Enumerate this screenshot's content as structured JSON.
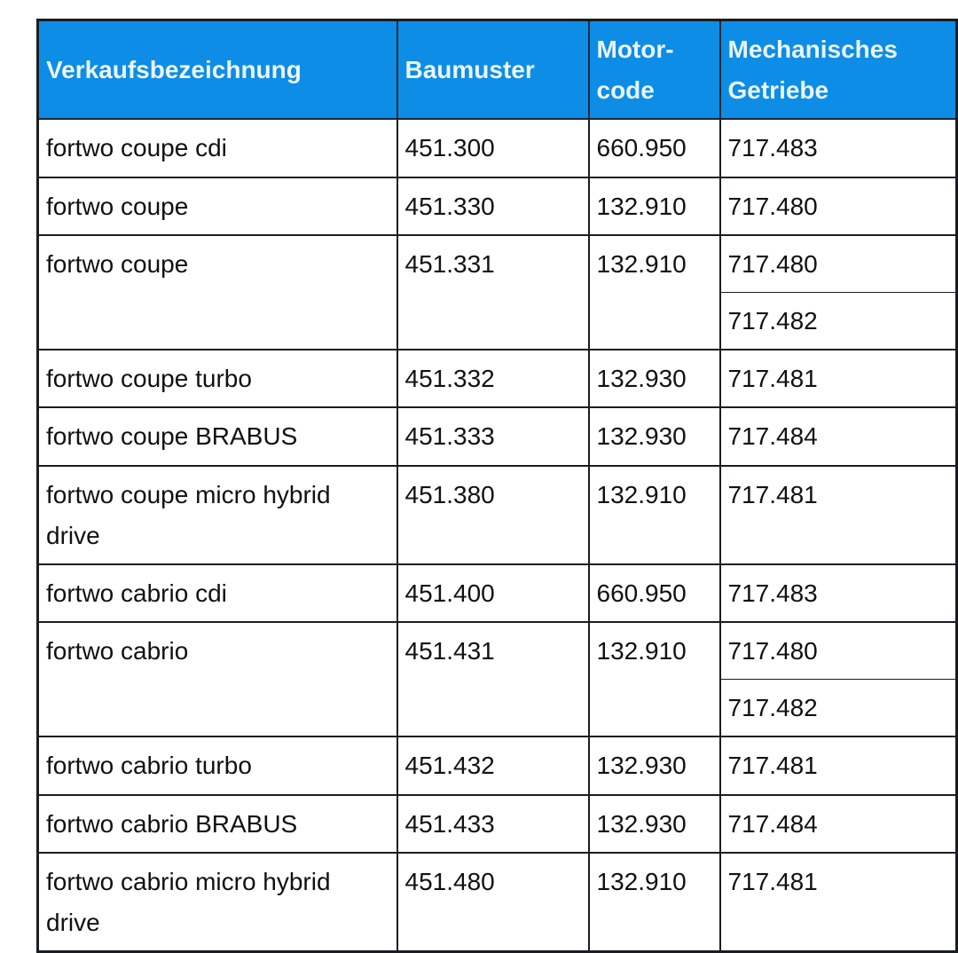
{
  "meta": {
    "description": "Technical reference table mapping smart fortwo sales designations to model series, engine codes and manual transmissions",
    "colors": {
      "header_background": "#0d8de5",
      "header_text": "#eaf5fc",
      "body_text": "#111111",
      "border": "#1a1d21",
      "page_background": "#ffffff"
    }
  },
  "table": {
    "headers": {
      "verkaufsbezeichnung": "Verkaufsbezeichnung",
      "baumuster": "Baumuster",
      "motorcode": "Motor-\ncode",
      "getriebe": "Mechanisches\nGetriebe"
    },
    "rows": [
      {
        "name": "fortwo coupe cdi",
        "baumuster": "451.300",
        "motorcode": "660.950",
        "getriebe": [
          "717.483"
        ]
      },
      {
        "name": "fortwo coupe",
        "baumuster": "451.330",
        "motorcode": "132.910",
        "getriebe": [
          "717.480"
        ]
      },
      {
        "name": "fortwo coupe",
        "baumuster": "451.331",
        "motorcode": "132.910",
        "getriebe": [
          "717.480",
          "717.482"
        ]
      },
      {
        "name": "fortwo coupe turbo",
        "baumuster": "451.332",
        "motorcode": "132.930",
        "getriebe": [
          "717.481"
        ]
      },
      {
        "name": "fortwo coupe BRABUS",
        "baumuster": "451.333",
        "motorcode": "132.930",
        "getriebe": [
          "717.484"
        ]
      },
      {
        "name": "fortwo coupe micro hybrid drive",
        "baumuster": "451.380",
        "motorcode": "132.910",
        "getriebe": [
          "717.481"
        ]
      },
      {
        "name": "fortwo cabrio cdi",
        "baumuster": "451.400",
        "motorcode": "660.950",
        "getriebe": [
          "717.483"
        ]
      },
      {
        "name": "fortwo cabrio",
        "baumuster": "451.431",
        "motorcode": "132.910",
        "getriebe": [
          "717.480",
          "717.482"
        ]
      },
      {
        "name": "fortwo cabrio turbo",
        "baumuster": "451.432",
        "motorcode": "132.930",
        "getriebe": [
          "717.481"
        ]
      },
      {
        "name": "fortwo cabrio BRABUS",
        "baumuster": "451.433",
        "motorcode": "132.930",
        "getriebe": [
          "717.484"
        ]
      },
      {
        "name": "fortwo cabrio micro hybrid drive",
        "baumuster": "451.480",
        "motorcode": "132.910",
        "getriebe": [
          "717.481"
        ]
      }
    ]
  }
}
